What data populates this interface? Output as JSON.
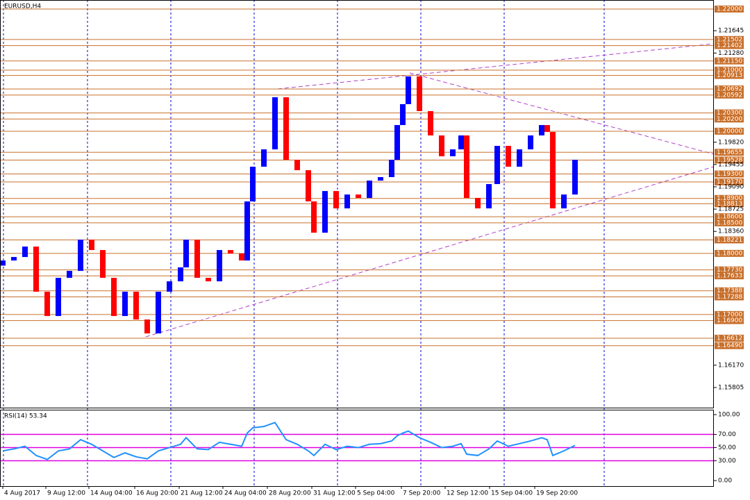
{
  "chart_data": [
    {
      "type": "candlestick",
      "title": "EURUSD,H4",
      "x": [
        1,
        5,
        9,
        13,
        17,
        21,
        25,
        29,
        33,
        37,
        41,
        45,
        49,
        53,
        57,
        61,
        65,
        67,
        71,
        75,
        79,
        83,
        87,
        89,
        91,
        95,
        99,
        103,
        107,
        111,
        113,
        117,
        121,
        125,
        129,
        133,
        137,
        141,
        143,
        145,
        147,
        151,
        155,
        159,
        163,
        166,
        168,
        172,
        176,
        179,
        183,
        187,
        191,
        195,
        197,
        199,
        203,
        207
      ],
      "open": [
        1.178,
        1.17884,
        1.17941,
        1.18112,
        1.17373,
        1.16975,
        1.176,
        1.17714,
        1.18225,
        1.18055,
        1.176,
        1.16975,
        1.17373,
        1.16918,
        1.1669,
        1.17373,
        1.17543,
        1.17771,
        1.18225,
        1.176,
        1.17543,
        1.18055,
        1.17998,
        1.17884,
        1.18851,
        1.19419,
        1.19703,
        1.20556,
        1.19533,
        1.19362,
        1.18851,
        1.18339,
        1.19021,
        1.18737,
        1.18964,
        1.18908,
        1.19192,
        1.19249,
        1.19533,
        1.20101,
        1.20443,
        1.20897,
        1.20329,
        1.19931,
        1.1959,
        1.19703,
        1.19931,
        1.18908,
        1.18737,
        1.19135,
        1.1976,
        1.19419,
        1.19703,
        1.19931,
        1.20101,
        1.19988,
        1.18737,
        1.18964
      ],
      "close": [
        1.17884,
        1.17941,
        1.18112,
        1.17373,
        1.16975,
        1.176,
        1.17714,
        1.18225,
        1.18055,
        1.176,
        1.16975,
        1.17373,
        1.16918,
        1.1669,
        1.17373,
        1.17543,
        1.17771,
        1.18225,
        1.176,
        1.17543,
        1.18055,
        1.17998,
        1.17884,
        1.18851,
        1.19419,
        1.19703,
        1.20556,
        1.19533,
        1.19362,
        1.18851,
        1.18339,
        1.19021,
        1.18737,
        1.18964,
        1.18908,
        1.19192,
        1.19249,
        1.19533,
        1.20101,
        1.20443,
        1.20897,
        1.20329,
        1.19931,
        1.1959,
        1.19703,
        1.19931,
        1.18908,
        1.18737,
        1.19135,
        1.1976,
        1.19419,
        1.19703,
        1.19931,
        1.20101,
        1.19988,
        1.18737,
        1.18964,
        1.19533
      ],
      "up_color": "#0000ff",
      "down_color": "#ff0000",
      "xlim": [
        0,
        257
      ],
      "ylim": [
        1.15464,
        1.22148
      ],
      "yticks": [
        1.15805,
        {
          "value": 1.1617,
          "label": "1.16170"
        },
        {
          "value": 1.1836,
          "label": "1.18360"
        },
        1.18725,
        {
          "value": 1.1909,
          "label": "1.19090"
        },
        1.19455,
        {
          "value": 1.1982,
          "label": "1.19820"
        },
        {
          "value": 1.2128,
          "label": "1.21280"
        },
        1.21645
      ],
      "levels": [
        {
          "value": 1.22,
          "label": "1.22000"
        },
        {
          "value": 1.21502,
          "label": "1.21502"
        },
        {
          "value": 1.21402,
          "label": "1.21402"
        },
        {
          "value": 1.2115,
          "label": "1.21150"
        },
        {
          "value": 1.21,
          "label": "1.21000"
        },
        {
          "value": 1.20913,
          "label": "1.20913"
        },
        {
          "value": 1.20692,
          "label": "1.20692"
        },
        {
          "value": 1.20592,
          "label": "1.20592"
        },
        {
          "value": 1.203,
          "label": "1.20300"
        },
        {
          "value": 1.202,
          "label": "1.20200"
        },
        {
          "value": 1.2,
          "label": "1.20000"
        },
        {
          "value": 1.19655,
          "label": "1.19655"
        },
        {
          "value": 1.19528,
          "label": "1.19528"
        },
        {
          "value": 1.193,
          "label": "1.19300"
        },
        {
          "value": 1.1917,
          "label": "1.19170"
        },
        {
          "value": 1.189,
          "label": "1.18900"
        },
        {
          "value": 1.18813,
          "label": "1.18813"
        },
        {
          "value": 1.186,
          "label": "1.18600"
        },
        {
          "value": 1.185,
          "label": "1.18500"
        },
        {
          "value": 1.18221,
          "label": "1.18221"
        },
        {
          "value": 1.18,
          "label": "1.18000"
        },
        {
          "value": 1.1773,
          "label": "1.17730"
        },
        {
          "value": 1.17633,
          "label": "1.17633"
        },
        {
          "value": 1.17388,
          "label": "1.17388"
        },
        {
          "value": 1.17288,
          "label": "1.17288"
        },
        {
          "value": 1.17,
          "label": "1.17000"
        },
        {
          "value": 1.169,
          "label": "1.16900"
        },
        {
          "value": 1.16612,
          "label": "1.16612"
        },
        {
          "value": 1.1649,
          "label": "1.16490"
        }
      ],
      "level_color": "#c8702c"
    },
    {
      "type": "line",
      "title": "RSI(14) 53.34",
      "x": [
        1,
        5,
        9,
        13,
        17,
        21,
        25,
        29,
        33,
        37,
        41,
        45,
        49,
        53,
        57,
        61,
        65,
        67,
        71,
        75,
        79,
        83,
        87,
        89,
        91,
        95,
        99,
        103,
        107,
        111,
        113,
        117,
        121,
        125,
        129,
        133,
        137,
        141,
        143,
        145,
        147,
        151,
        155,
        159,
        163,
        166,
        168,
        172,
        176,
        179,
        183,
        187,
        191,
        195,
        197,
        199,
        203,
        207
      ],
      "values": [
        45,
        48,
        52,
        38,
        32,
        45,
        48,
        62,
        55,
        45,
        35,
        42,
        36,
        33,
        45,
        50,
        55,
        65,
        48,
        47,
        58,
        55,
        52,
        72,
        80,
        82,
        88,
        62,
        55,
        45,
        38,
        55,
        47,
        52,
        50,
        55,
        56,
        60,
        68,
        72,
        75,
        65,
        58,
        50,
        52,
        56,
        40,
        38,
        48,
        60,
        52,
        56,
        60,
        65,
        62,
        38,
        45,
        53.34
      ],
      "color": "#1e90ff",
      "xlim": [
        0,
        257
      ],
      "ylim": [
        -8.4,
        107.4
      ],
      "yticks": [
        {
          "value": 100,
          "label": "100.00"
        },
        {
          "value": 70,
          "label": "70.00"
        },
        {
          "value": 50,
          "label": "50.00"
        },
        {
          "value": 30,
          "label": "30.00"
        },
        {
          "value": 0,
          "label": "0.00"
        }
      ],
      "levels": [
        70,
        50,
        30
      ],
      "level_color": "#e000e0",
      "xticks": [
        {
          "value": 1,
          "label": "4 Aug 2017"
        },
        {
          "value": 16.5,
          "label": "9 Aug 12:00"
        },
        {
          "value": 32,
          "label": "14 Aug 04:00"
        },
        {
          "value": 48.5,
          "label": "16 Aug 20:00"
        },
        {
          "value": 64.5,
          "label": "21 Aug 12:00"
        },
        {
          "value": 80.25,
          "label": "24 Aug 04:00"
        },
        {
          "value": 96.25,
          "label": "28 Aug 20:00"
        },
        {
          "value": 112.25,
          "label": "31 Aug 12:00"
        },
        {
          "value": 128,
          "label": "5 Sep 04:00"
        },
        {
          "value": 144.5,
          "label": "7 Sep 20:00"
        },
        {
          "value": 160.25,
          "label": "12 Sep 12:00"
        },
        {
          "value": 176.25,
          "label": "15 Sep 04:00"
        },
        {
          "value": 192.5,
          "label": "19 Sep 20:00"
        }
      ]
    }
  ]
}
